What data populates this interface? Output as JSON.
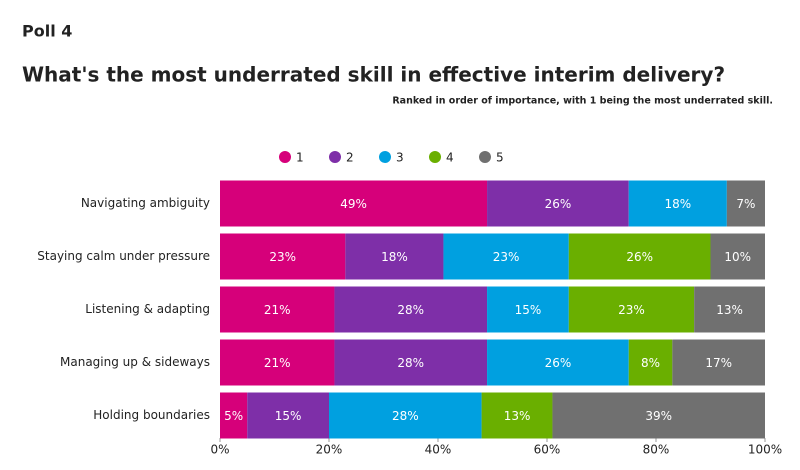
{
  "header": {
    "poll": "Poll 4"
  },
  "chart_data": {
    "type": "stacked-bar-horizontal",
    "title": "What's the most underrated skill in effective interim delivery?",
    "subtitle": "Ranked in order of importance, with 1 being the most underrated skill.",
    "categories": [
      "Navigating ambiguity",
      "Staying calm under pressure",
      "Listening & adapting",
      "Managing up & sideways",
      "Holding boundaries"
    ],
    "series": [
      {
        "name": "1",
        "color": "#d6007a",
        "values": [
          49,
          23,
          21,
          21,
          5
        ],
        "value_labels": [
          "49%",
          "23%",
          "21%",
          "21%",
          "5%"
        ]
      },
      {
        "name": "2",
        "color": "#7e2fa8",
        "values": [
          26,
          18,
          28,
          28,
          15
        ],
        "value_labels": [
          "26%",
          "18%",
          "28%",
          "28%",
          "15%"
        ]
      },
      {
        "name": "3",
        "color": "#00a0e0",
        "values": [
          18,
          23,
          15,
          26,
          28
        ],
        "value_labels": [
          "18%",
          "23%",
          "15%",
          "26%",
          "28%"
        ]
      },
      {
        "name": "4",
        "color": "#6aaf00",
        "values": [
          null,
          26,
          23,
          8,
          13
        ],
        "value_labels": [
          null,
          "26%",
          "23%",
          "8%",
          "13%"
        ]
      },
      {
        "name": "5",
        "color": "#707070",
        "values": [
          7,
          10,
          13,
          17,
          39
        ],
        "value_labels": [
          "7%",
          "10%",
          "13%",
          "17%",
          "39%"
        ]
      }
    ],
    "xlim": [
      0,
      100
    ],
    "xticks": [
      {
        "value": 0,
        "label": "0%"
      },
      {
        "value": 20,
        "label": "20%"
      },
      {
        "value": 40,
        "label": "40%"
      },
      {
        "value": 60,
        "label": "60%"
      },
      {
        "value": 80,
        "label": "80%"
      },
      {
        "value": 100,
        "label": "100%"
      }
    ],
    "legend": "top"
  }
}
